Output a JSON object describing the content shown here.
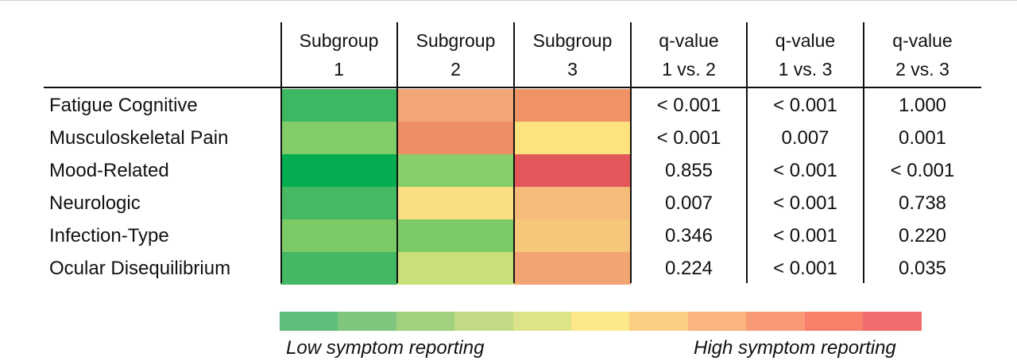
{
  "chart_data": {
    "type": "heatmap",
    "columns": [
      {
        "line1": "Subgroup",
        "line2": "1"
      },
      {
        "line1": "Subgroup",
        "line2": "2"
      },
      {
        "line1": "Subgroup",
        "line2": "3"
      },
      {
        "line1": "q-value",
        "line2": "1 vs. 2"
      },
      {
        "line1": "q-value",
        "line2": "1 vs. 3"
      },
      {
        "line1": "q-value",
        "line2": "2 vs. 3"
      }
    ],
    "rows": [
      {
        "label": "Fatigue Cognitive",
        "levels": [
          0,
          7,
          8
        ],
        "colors": [
          "#3cb862",
          "#f2a575",
          "#ef9265"
        ],
        "q": [
          "< 0.001",
          "< 0.001",
          "1.000"
        ]
      },
      {
        "label": "Musculoskeletal Pain",
        "levels": [
          2,
          8,
          5
        ],
        "colors": [
          "#82cd68",
          "#ee8e64",
          "#fde27e"
        ],
        "q": [
          "< 0.001",
          "0.007",
          "0.001"
        ]
      },
      {
        "label": "Mood-Related",
        "levels": [
          0,
          2,
          10
        ],
        "colors": [
          "#04ae50",
          "#87cd68",
          "#e3575a"
        ],
        "q": [
          "0.855",
          "< 0.001",
          "< 0.001"
        ]
      },
      {
        "label": "Neurologic",
        "levels": [
          1,
          5,
          6
        ],
        "colors": [
          "#48b963",
          "#fcde82",
          "#f5bb7a"
        ],
        "q": [
          "0.007",
          "< 0.001",
          "0.738"
        ]
      },
      {
        "label": "Infection-Type",
        "levels": [
          2,
          2,
          6
        ],
        "colors": [
          "#7cca66",
          "#7ccb67",
          "#f6c67b"
        ],
        "q": [
          "0.346",
          "< 0.001",
          "0.220"
        ]
      },
      {
        "label": "Ocular Disequilibrium",
        "levels": [
          1,
          4,
          7
        ],
        "colors": [
          "#44b863",
          "#c9df79",
          "#f2a472"
        ],
        "q": [
          "0.224",
          "< 0.001",
          "0.035"
        ]
      }
    ],
    "legend": {
      "colors": [
        "#5fbd7a",
        "#80c57c",
        "#a0d17f",
        "#c3da85",
        "#dde388",
        "#fde98a",
        "#fccf87",
        "#fbb47e",
        "#f99a77",
        "#f68069",
        "#f16c6c"
      ],
      "low_label": "Low symptom reporting",
      "high_label": "High symptom reporting"
    }
  }
}
